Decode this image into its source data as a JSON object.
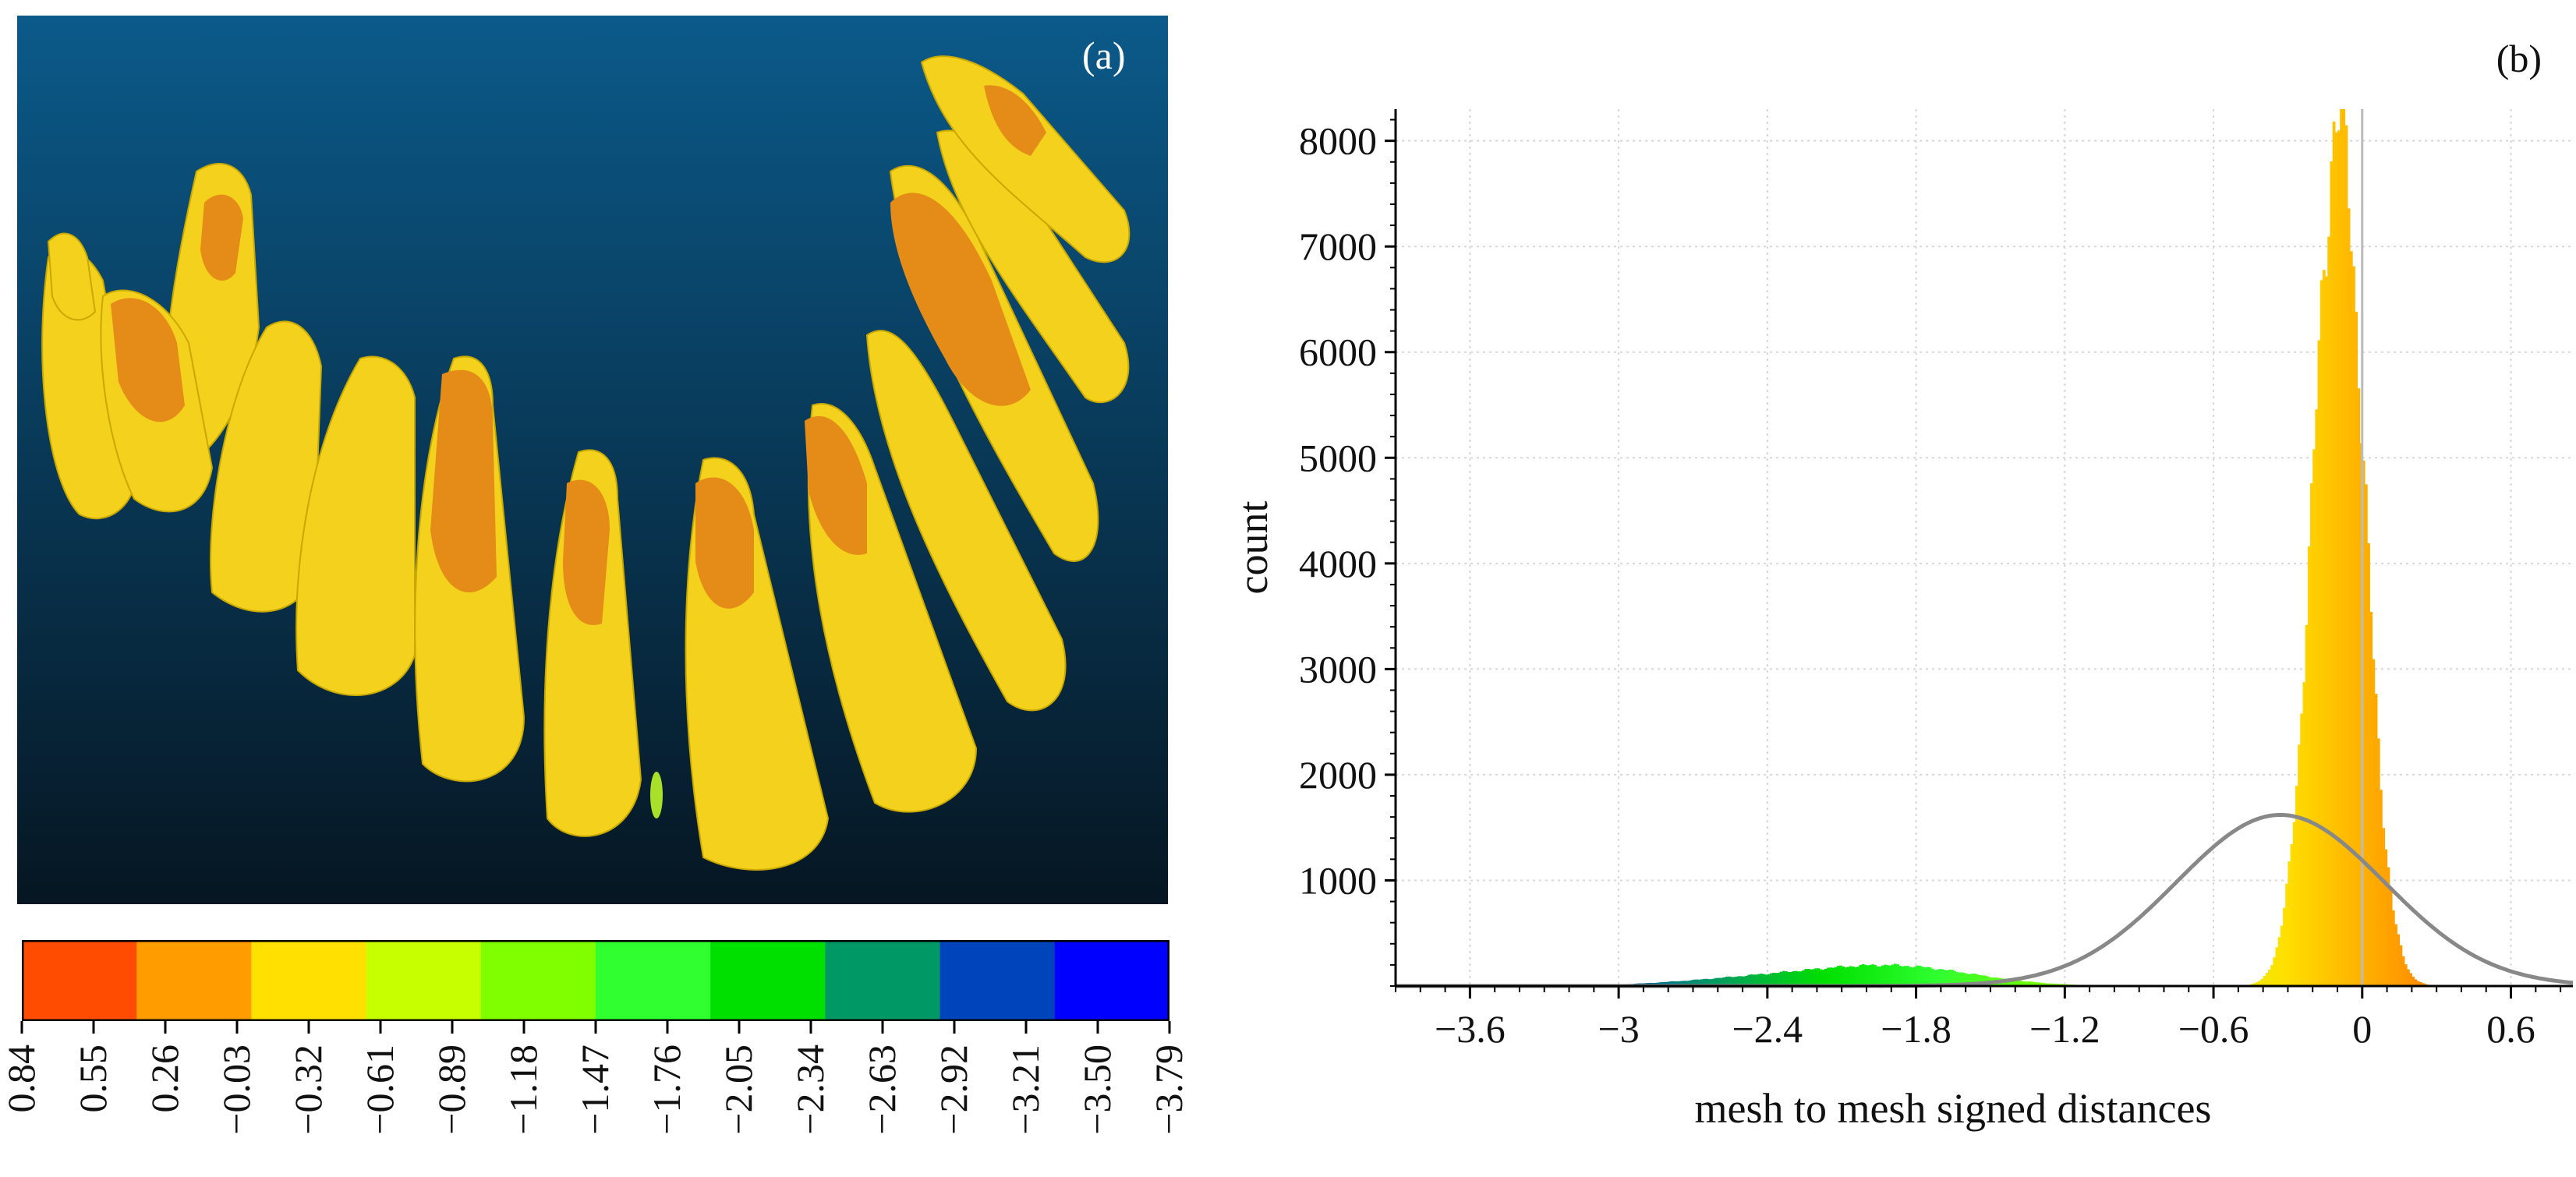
{
  "panel_a": {
    "label": "(a)",
    "subject": "dental arch 3D mesh colored by deviation",
    "colors": {
      "background_top": "#0b5a8a",
      "background_bottom": "#061622",
      "tooth_yellow": "#f5d21b",
      "tooth_orange": "#e58c18",
      "tooth_green": "#a8e02a"
    }
  },
  "colorbar": {
    "colors": [
      "#ff4c00",
      "#ff9c00",
      "#ffe000",
      "#c8ff00",
      "#80ff00",
      "#30ff30",
      "#00e000",
      "#009966",
      "#0044bb",
      "#0000ff"
    ],
    "tick_labels": [
      "0.84",
      "0.55",
      "0.26",
      "−0.03",
      "−0.32",
      "−0.61",
      "−0.89",
      "−1.18",
      "−1.47",
      "−1.76",
      "−2.05",
      "−2.34",
      "−2.63",
      "−2.92",
      "−3.21",
      "−3.50",
      "−3.79"
    ]
  },
  "chart_data": {
    "type": "histogram",
    "label": "(b)",
    "xlabel": "mesh to mesh signed distances",
    "ylabel": "count",
    "xlim": [
      -3.9,
      0.85
    ],
    "ylim": [
      0,
      8300
    ],
    "x_ticks": [
      -3.6,
      -3,
      -2.4,
      -1.8,
      -1.2,
      -0.6,
      0,
      0.6
    ],
    "x_tick_labels": [
      "−3.6",
      "−3",
      "−2.4",
      "−1.8",
      "−1.2",
      "−0.6",
      "0",
      "0.6"
    ],
    "y_ticks": [
      1000,
      2000,
      3000,
      4000,
      5000,
      6000,
      7000,
      8000
    ],
    "y_tick_labels": [
      "1000",
      "2000",
      "3000",
      "4000",
      "5000",
      "6000",
      "7000",
      "8000"
    ],
    "grid": true,
    "histogram_components": [
      {
        "name": "main peak",
        "center": -0.1,
        "sigma": 0.1,
        "peak": 8200
      },
      {
        "name": "secondary mode",
        "center": -1.85,
        "sigma": 0.3,
        "peak": 160
      },
      {
        "name": "left tail",
        "center": -2.35,
        "sigma": 0.35,
        "peak": 90
      }
    ],
    "fit_curve": {
      "name": "normal fit",
      "mean": -0.33,
      "sigma": 0.42,
      "peak": 1620,
      "color": "#888888"
    },
    "reference_line_x": 0
  }
}
